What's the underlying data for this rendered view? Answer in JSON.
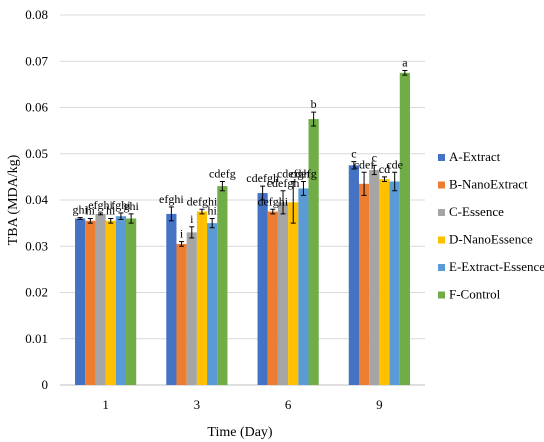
{
  "chart_data": {
    "type": "bar",
    "title": "",
    "xlabel": "Time (Day)",
    "ylabel": "TBA (MDA/kg)",
    "categories": [
      "1",
      "3",
      "6",
      "9"
    ],
    "ylim": [
      0,
      0.08
    ],
    "yticks": [
      "0",
      "0.01",
      "0.02",
      "0.03",
      "0.04",
      "0.05",
      "0.06",
      "0.07",
      "0.08"
    ],
    "grid": true,
    "legend_position": "right",
    "series": [
      {
        "name": "A-Extract",
        "color": "#4472C4",
        "values": [
          0.036,
          0.037,
          0.0415,
          0.0475
        ],
        "errors": [
          0.0002,
          0.0015,
          0.0015,
          0.0008
        ],
        "labels": [
          "ghi",
          "efghi",
          "cdefgh",
          "c"
        ]
      },
      {
        "name": "B-NanoExtract",
        "color": "#ED7D31",
        "values": [
          0.0355,
          0.0305,
          0.0375,
          0.0435
        ],
        "errors": [
          0.0005,
          0.0005,
          0.0005,
          0.0025
        ],
        "labels": [
          "hi",
          "i",
          "defghi",
          "cdef"
        ]
      },
      {
        "name": "C-Essence",
        "color": "#A5A5A5",
        "values": [
          0.037,
          0.033,
          0.0395,
          0.0465
        ],
        "errors": [
          0.0002,
          0.0012,
          0.0025,
          0.001
        ],
        "labels": [
          "efghi",
          "i",
          "cdefgh",
          "c"
        ]
      },
      {
        "name": "D-NanoEssence",
        "color": "#FFC000",
        "values": [
          0.0355,
          0.0375,
          0.0395,
          0.0445
        ],
        "errors": [
          0.0005,
          0.0005,
          0.0045,
          0.0005
        ],
        "labels": [
          "hi",
          "defghi",
          "cdefgh",
          "cd"
        ]
      },
      {
        "name": "E-Extract-Essence",
        "color": "#5B9BD5",
        "values": [
          0.0365,
          0.035,
          0.0425,
          0.044
        ],
        "errors": [
          0.0007,
          0.001,
          0.0015,
          0.002
        ],
        "labels": [
          "fghi",
          "hi",
          "cdefg",
          "cde"
        ]
      },
      {
        "name": "F-Control",
        "color": "#70AD47",
        "values": [
          0.036,
          0.043,
          0.0575,
          0.0675
        ],
        "errors": [
          0.001,
          0.001,
          0.0015,
          0.0005
        ],
        "labels": [
          "ghi",
          "cdefg",
          "b",
          "a"
        ]
      }
    ]
  }
}
